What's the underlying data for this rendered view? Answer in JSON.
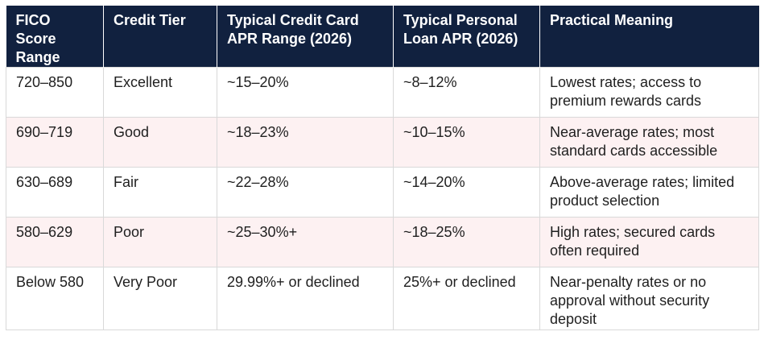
{
  "columns": [
    "FICO Score Range",
    "Credit Tier",
    "Typical Credit Card APR Range (2026)",
    "Typical Personal Loan APR (2026)",
    "Practical Meaning"
  ],
  "rows": [
    [
      "720–850",
      "Excellent",
      "~15–20%",
      "~8–12%",
      "Lowest rates; access to premium rewards cards"
    ],
    [
      "690–719",
      "Good",
      "~18–23%",
      "~10–15%",
      "Near-average rates; most standard cards accessible"
    ],
    [
      "630–689",
      "Fair",
      "~22–28%",
      "~14–20%",
      "Above-average rates; limited product selection"
    ],
    [
      "580–629",
      "Poor",
      "~25–30%+",
      "~18–25%",
      "High rates; secured cards often required"
    ],
    [
      "Below 580",
      "Very Poor",
      "29.99%+ or declined",
      "25%+ or declined",
      "Near-penalty rates or no approval without security deposit"
    ]
  ],
  "colors": {
    "header_bg": "#11213f",
    "header_text": "#ffffff",
    "stripe_bg": "#fdf1f2",
    "border": "#d9d9d9"
  }
}
